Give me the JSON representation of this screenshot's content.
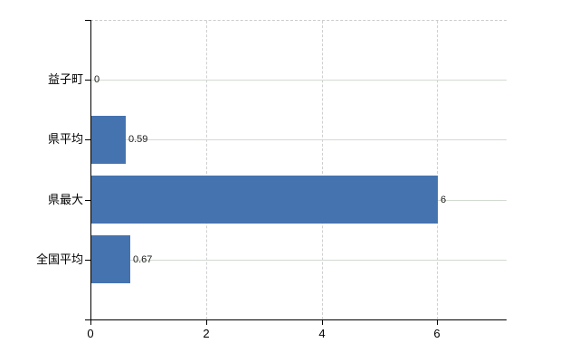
{
  "chart_data": {
    "type": "bar",
    "orientation": "horizontal",
    "title": "",
    "categories": [
      "益子町",
      "県平均",
      "県最大",
      "全国平均"
    ],
    "values": [
      0,
      0.59,
      6,
      0.67
    ],
    "value_labels": [
      "0",
      "0.59",
      "6",
      "0.67"
    ],
    "x_tick_labels": [
      "0",
      "2",
      "4",
      "6"
    ],
    "x_tick_values": [
      0,
      2,
      4,
      6
    ],
    "xlim": [
      0,
      7.2
    ],
    "grid": true,
    "legend_position": "none",
    "colors": {
      "bar": "#4573b0",
      "h_gridline": "#d3dad1",
      "v_gridline": "#cfcfd2",
      "top_border": "#cbcbcb",
      "axis": "#000000",
      "tick_text": "#000000",
      "value_text": "#1c1c1c",
      "background": "#ffffff"
    }
  }
}
